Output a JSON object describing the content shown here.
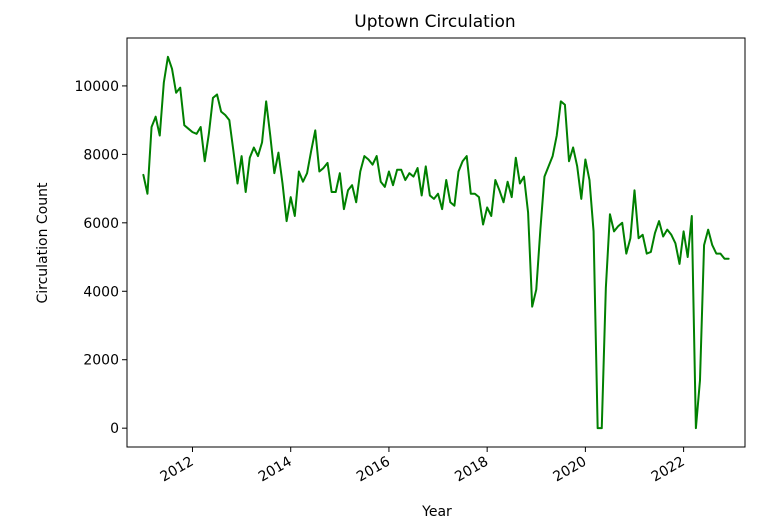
{
  "chart_data": {
    "type": "line",
    "title": "Uptown Circulation",
    "xlabel": "Year",
    "ylabel": "Circulation Count",
    "x_ticks": [
      "2012",
      "2014",
      "2016",
      "2018",
      "2020",
      "2022"
    ],
    "y_ticks": [
      "0",
      "2000",
      "4000",
      "6000",
      "8000",
      "10000"
    ],
    "xlim": [
      "2010-09-01",
      "2023-04-01"
    ],
    "ylim": [
      -550,
      11400
    ],
    "grid": false,
    "legend": "none",
    "series": [
      {
        "color": "#008000",
        "x": [
          "2011-01",
          "2011-02",
          "2011-03",
          "2011-04",
          "2011-05",
          "2011-06",
          "2011-07",
          "2011-08",
          "2011-09",
          "2011-10",
          "2011-11",
          "2011-12",
          "2012-01",
          "2012-02",
          "2012-03",
          "2012-04",
          "2012-05",
          "2012-06",
          "2012-07",
          "2012-08",
          "2012-09",
          "2012-10",
          "2012-11",
          "2012-12",
          "2013-01",
          "2013-02",
          "2013-03",
          "2013-04",
          "2013-05",
          "2013-06",
          "2013-07",
          "2013-08",
          "2013-09",
          "2013-10",
          "2013-11",
          "2013-12",
          "2014-01",
          "2014-02",
          "2014-03",
          "2014-04",
          "2014-05",
          "2014-06",
          "2014-07",
          "2014-08",
          "2014-09",
          "2014-10",
          "2014-11",
          "2014-12",
          "2015-01",
          "2015-02",
          "2015-03",
          "2015-04",
          "2015-05",
          "2015-06",
          "2015-07",
          "2015-08",
          "2015-09",
          "2015-10",
          "2015-11",
          "2015-12",
          "2016-01",
          "2016-02",
          "2016-03",
          "2016-04",
          "2016-05",
          "2016-06",
          "2016-07",
          "2016-08",
          "2016-09",
          "2016-10",
          "2016-11",
          "2016-12",
          "2017-01",
          "2017-02",
          "2017-03",
          "2017-04",
          "2017-05",
          "2017-06",
          "2017-07",
          "2017-08",
          "2017-09",
          "2017-10",
          "2017-11",
          "2017-12",
          "2018-01",
          "2018-02",
          "2018-03",
          "2018-04",
          "2018-05",
          "2018-06",
          "2018-07",
          "2018-08",
          "2018-09",
          "2018-10",
          "2018-11",
          "2018-12",
          "2019-01",
          "2019-02",
          "2019-03",
          "2019-04",
          "2019-05",
          "2019-06",
          "2019-07",
          "2019-08",
          "2019-09",
          "2019-10",
          "2019-11",
          "2019-12",
          "2020-01",
          "2020-02",
          "2020-03",
          "2020-04",
          "2020-05",
          "2020-06",
          "2020-07",
          "2020-08",
          "2020-09",
          "2020-10",
          "2020-11",
          "2020-12",
          "2021-01",
          "2021-02",
          "2021-03",
          "2021-04",
          "2021-05",
          "2021-06",
          "2021-07",
          "2021-08",
          "2021-09",
          "2021-10",
          "2021-11",
          "2021-12",
          "2022-01",
          "2022-02",
          "2022-03",
          "2022-04",
          "2022-05",
          "2022-06",
          "2022-07",
          "2022-08",
          "2022-09",
          "2022-10",
          "2022-11",
          "2022-12"
        ],
        "values": [
          7400,
          6850,
          8800,
          9100,
          8550,
          10100,
          10850,
          10500,
          9800,
          9950,
          8850,
          8750,
          8650,
          8600,
          8800,
          7800,
          8600,
          9650,
          9750,
          9250,
          9150,
          9000,
          8100,
          7150,
          7950,
          6900,
          7900,
          8200,
          7950,
          8350,
          9550,
          8550,
          7450,
          8050,
          7150,
          6050,
          6750,
          6200,
          7500,
          7200,
          7450,
          8100,
          8700,
          7500,
          7600,
          7750,
          6900,
          6900,
          7450,
          6400,
          6950,
          7100,
          6600,
          7500,
          7950,
          7850,
          7700,
          7950,
          7200,
          7050,
          7500,
          7100,
          7550,
          7550,
          7250,
          7450,
          7350,
          7600,
          6800,
          7650,
          6800,
          6700,
          6850,
          6400,
          7250,
          6600,
          6500,
          7500,
          7800,
          7950,
          6850,
          6850,
          6750,
          5950,
          6450,
          6200,
          7250,
          6950,
          6600,
          7200,
          6750,
          7900,
          7150,
          7350,
          6300,
          3550,
          4050,
          5800,
          7350,
          7650,
          7950,
          8550,
          9550,
          9450,
          7800,
          8200,
          7650,
          6700,
          7850,
          7250,
          5750,
          0,
          0,
          4100,
          6250,
          5750,
          5900,
          6000,
          5100,
          5550,
          6950,
          5550,
          5650,
          5100,
          5150,
          5700,
          6050,
          5600,
          5800,
          5650,
          5400,
          4800,
          5750,
          5000,
          6200,
          0,
          1400,
          5350,
          5800,
          5350,
          5100,
          5100,
          4950,
          4950
        ]
      }
    ]
  }
}
